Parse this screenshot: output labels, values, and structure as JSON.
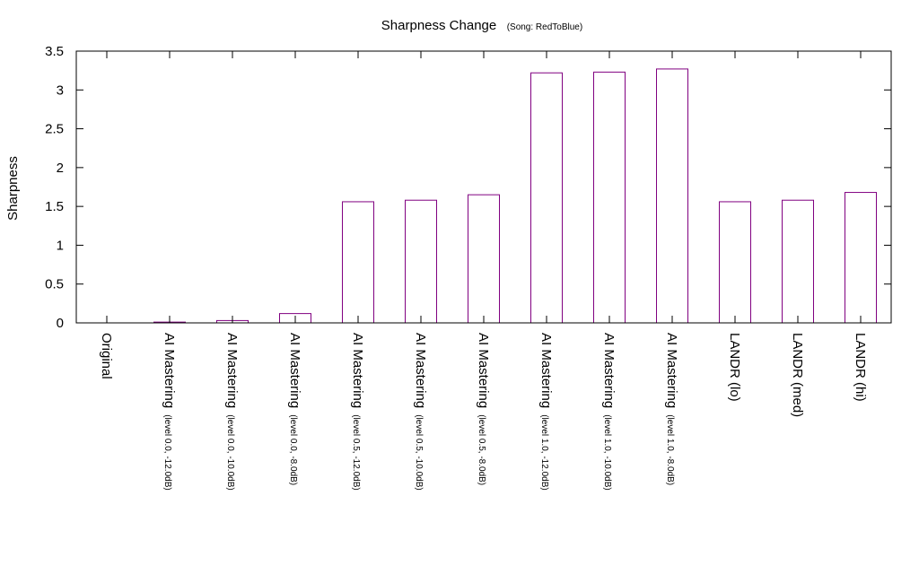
{
  "chart_data": {
    "type": "bar",
    "title": "Sharpness Change",
    "subtitle": "(Song: RedToBlue)",
    "xlabel": "",
    "ylabel": "Sharpness",
    "ylim": [
      0,
      3.5
    ],
    "yticks": [
      "0",
      "0.5",
      "1",
      "1.5",
      "2",
      "2.5",
      "3",
      "3.5"
    ],
    "grid": false,
    "bar_color": "#800080",
    "bar_fill": "#ffffff",
    "categories": [
      {
        "main": "Original",
        "sub": ""
      },
      {
        "main": "AI Mastering",
        "sub": "(level 0.0, -12.0dB)"
      },
      {
        "main": "AI Mastering",
        "sub": "(level 0.0, -10.0dB)"
      },
      {
        "main": "AI Mastering",
        "sub": "(level 0.0, -8.0dB)"
      },
      {
        "main": "AI Mastering",
        "sub": "(level 0.5, -12.0dB)"
      },
      {
        "main": "AI Mastering",
        "sub": "(level 0.5, -10.0dB)"
      },
      {
        "main": "AI Mastering",
        "sub": "(level 0.5, -8.0dB)"
      },
      {
        "main": "AI Mastering",
        "sub": "(level 1.0, -12.0dB)"
      },
      {
        "main": "AI Mastering",
        "sub": "(level 1.0, -10.0dB)"
      },
      {
        "main": "AI Mastering",
        "sub": "(level 1.0, -8.0dB)"
      },
      {
        "main": "LANDR (lo)",
        "sub": ""
      },
      {
        "main": "LANDR (med)",
        "sub": ""
      },
      {
        "main": "LANDR (hi)",
        "sub": ""
      }
    ],
    "values": [
      0,
      0.01,
      0.03,
      0.12,
      1.56,
      1.58,
      1.65,
      3.22,
      3.23,
      3.27,
      1.56,
      1.58,
      1.68
    ]
  }
}
